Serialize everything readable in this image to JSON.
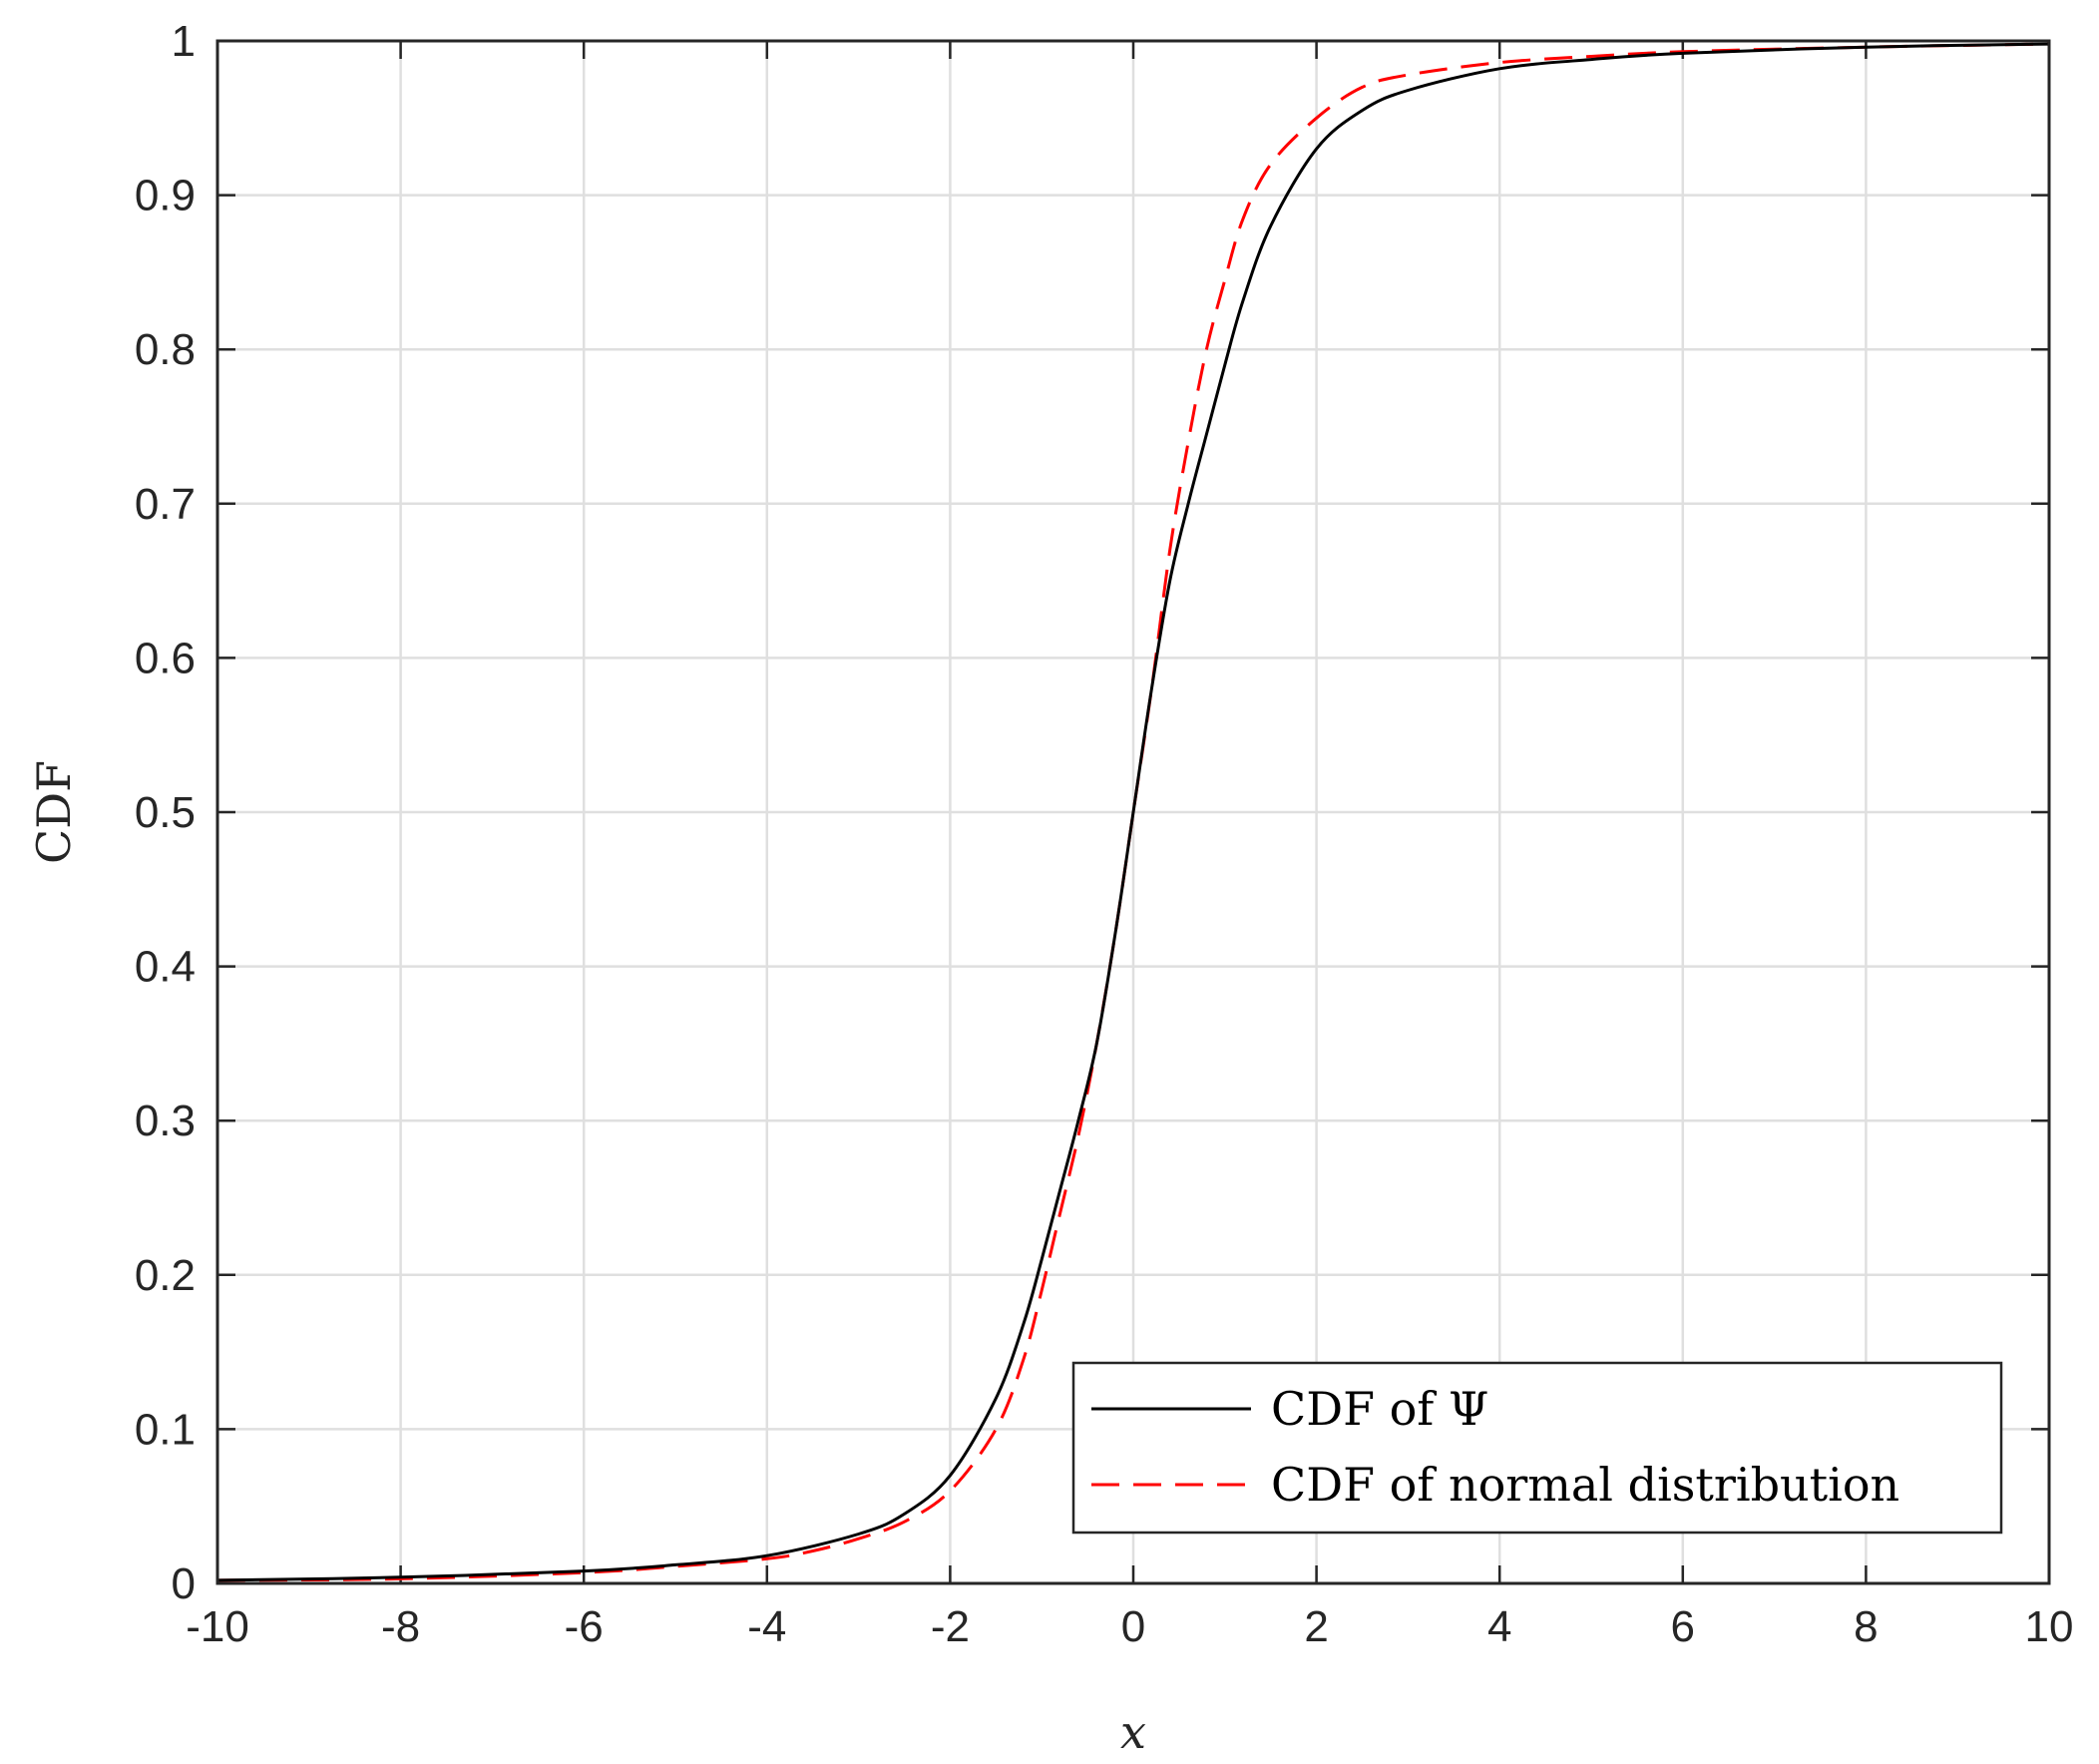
{
  "chart_data": {
    "type": "line",
    "title": "",
    "xlabel": "x",
    "ylabel": "CDF",
    "xlim": [
      -10,
      10
    ],
    "ylim": [
      0,
      1
    ],
    "xticks": [
      "-10",
      "-8",
      "-6",
      "-4",
      "-2",
      "0",
      "2",
      "4",
      "6",
      "8",
      "10"
    ],
    "yticks": [
      "0",
      "0.1",
      "0.2",
      "0.3",
      "0.4",
      "0.5",
      "0.6",
      "0.7",
      "0.8",
      "0.9",
      "1"
    ],
    "grid": true,
    "legend_position": "bottom-right",
    "series": [
      {
        "name": "CDF of Ψ",
        "color": "#000000",
        "style": "solid",
        "x": [
          -10,
          -8,
          -6,
          -5,
          -4,
          -3,
          -2.5,
          -2,
          -1.5,
          -1.2,
          -1,
          -0.8,
          -0.6,
          -0.4,
          -0.2,
          0,
          0.2,
          0.4,
          0.6,
          0.8,
          1,
          1.2,
          1.5,
          2,
          2.5,
          3,
          4,
          5,
          6,
          8,
          10
        ],
        "y": [
          0.002,
          0.004,
          0.008,
          0.012,
          0.018,
          0.032,
          0.045,
          0.07,
          0.12,
          0.168,
          0.21,
          0.255,
          0.3,
          0.35,
          0.42,
          0.5,
          0.58,
          0.65,
          0.7,
          0.745,
          0.79,
          0.832,
          0.88,
          0.93,
          0.955,
          0.968,
          0.982,
          0.988,
          0.992,
          0.996,
          0.998
        ]
      },
      {
        "name": "CDF of normal distribution",
        "color": "#ff0000",
        "style": "dashed",
        "x": [
          -10,
          -8,
          -6,
          -5,
          -4,
          -3.5,
          -3,
          -2.5,
          -2,
          -1.5,
          -1.2,
          -1,
          -0.8,
          -0.6,
          -0.4,
          -0.2,
          0,
          0.2,
          0.4,
          0.6,
          0.8,
          1,
          1.2,
          1.5,
          2,
          2.5,
          3,
          4,
          5,
          6,
          8,
          10
        ],
        "y": [
          0.002,
          0.003,
          0.007,
          0.011,
          0.016,
          0.021,
          0.029,
          0.04,
          0.06,
          0.1,
          0.145,
          0.19,
          0.24,
          0.29,
          0.35,
          0.42,
          0.5,
          0.58,
          0.67,
          0.74,
          0.8,
          0.845,
          0.885,
          0.92,
          0.95,
          0.97,
          0.978,
          0.986,
          0.99,
          0.993,
          0.996,
          0.998
        ]
      }
    ]
  }
}
